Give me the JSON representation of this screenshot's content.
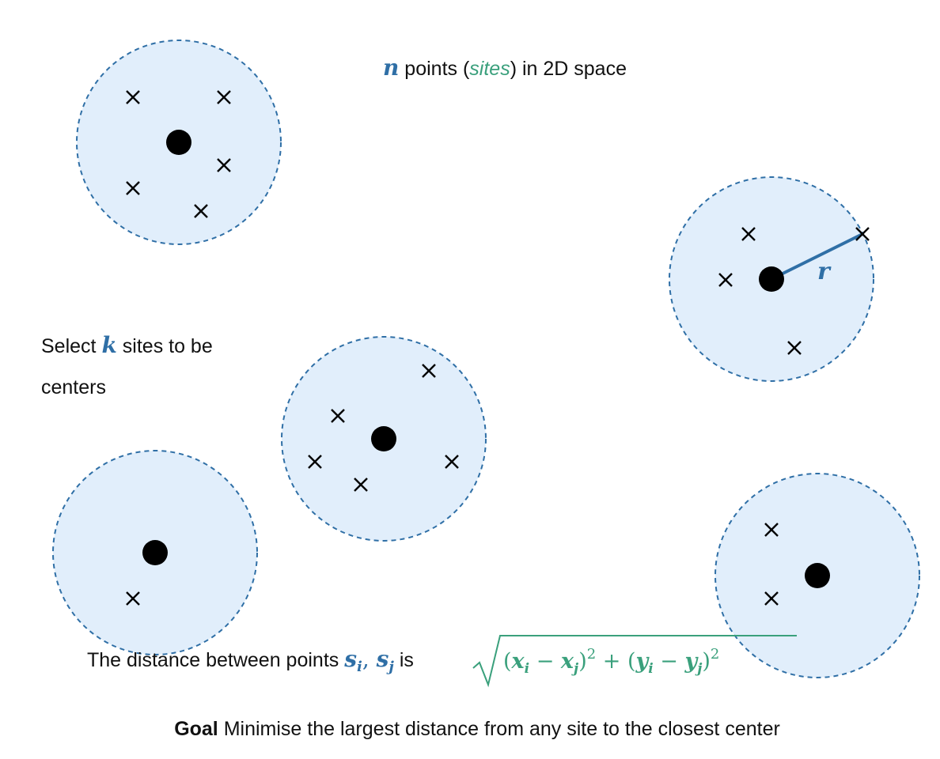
{
  "colors": {
    "blue": "#2f6fa6",
    "green": "#3aa07c",
    "circle_fill": "#e1eefb"
  },
  "headline": {
    "n_var": "n",
    "text_a": " points (",
    "sites_word": "sites",
    "text_b": ") in 2D space"
  },
  "select": {
    "text_a": "Select ",
    "k_var": "k",
    "text_b": " sites to be",
    "line2": "centers"
  },
  "radius_label": "r",
  "distance": {
    "text_a": "The distance between points ",
    "s_i": "s",
    "sub_i": "i",
    "comma": ", ",
    "s_j": "s",
    "sub_j": "j",
    "text_b": " is ",
    "formula": {
      "open1": "(",
      "x1": "x",
      "x1_sub": "i",
      "minus1": " − ",
      "x2": "x",
      "x2_sub": "j",
      "close1": ")",
      "sq1": "2",
      "plus": " + (",
      "y1": "y",
      "y1_sub": "i",
      "minus2": " − ",
      "y2": "y",
      "y2_sub": "j",
      "close2": ")",
      "sq2": "2"
    }
  },
  "goal": {
    "bold": "Goal",
    "text": " Minimise the largest distance from any site to the closest center"
  },
  "icons": {
    "site_marker": "x-cross-icon",
    "center_marker": "filled-dot-icon"
  }
}
